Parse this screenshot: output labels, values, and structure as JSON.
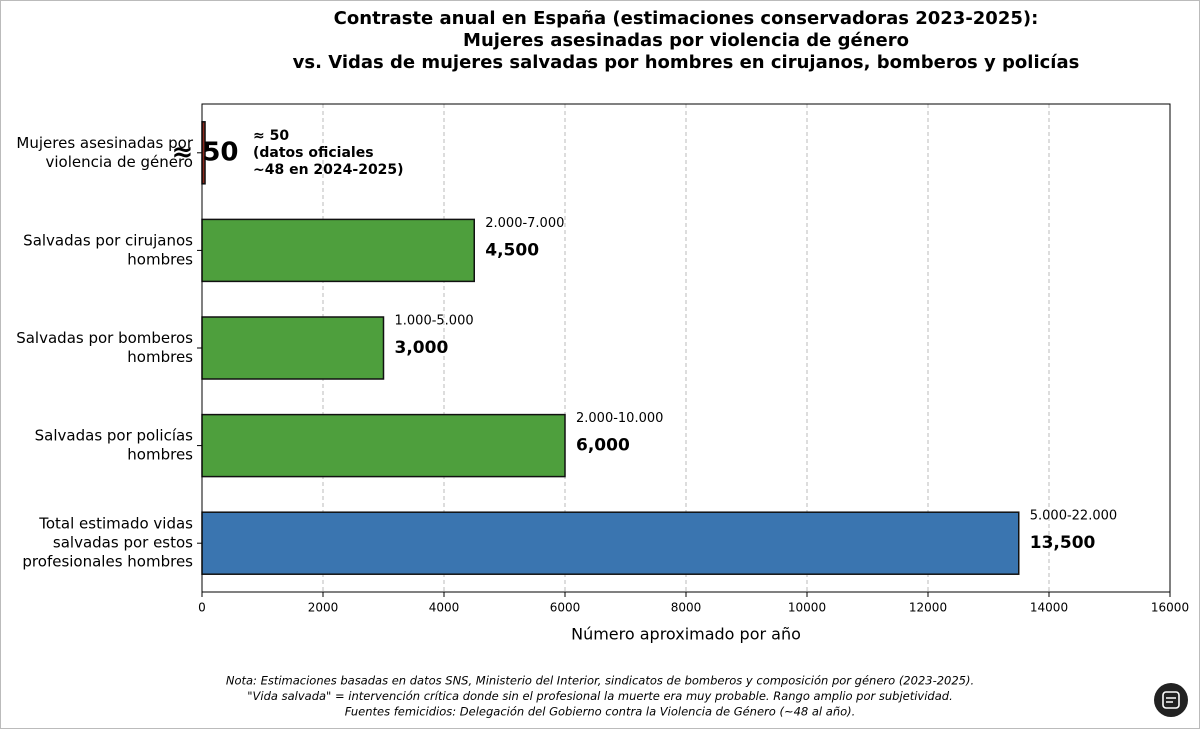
{
  "chart_data": {
    "type": "barh",
    "title": [
      "Contraste anual en España (estimaciones conservadoras 2023-2025):",
      "Mujeres asesinadas por violencia de género",
      "vs. Vidas de mujeres salvadas por hombres en cirujanos, bomberos y policías"
    ],
    "categories": [
      [
        "Mujeres asesinadas por",
        "violencia de género"
      ],
      [
        "Salvadas por cirujanos",
        "hombres"
      ],
      [
        "Salvadas por bomberos",
        "hombres"
      ],
      [
        "Salvadas por policías",
        "hombres"
      ],
      [
        "Total estimado vidas",
        "salvadas por estos",
        "profesionales hombres"
      ]
    ],
    "values": [
      50,
      4500,
      3000,
      6000,
      13500
    ],
    "value_labels": [
      "≈ 50",
      "4,500",
      "3,000",
      "6,000",
      "13,500"
    ],
    "range_labels": [
      null,
      "2.000-7.000",
      "1.000-5.000",
      "2.000-10.000",
      "5.000-22.000"
    ],
    "annotation": [
      "≈ 50",
      "(datos oficiales",
      "~48 en 2024-2025)"
    ],
    "colors": [
      "#8b2a1f",
      "#4e9f3d",
      "#4e9f3d",
      "#4e9f3d",
      "#3a75b0"
    ],
    "xlabel": "Número aproximado por año",
    "xlim": [
      0,
      16000
    ],
    "xticks": [
      0,
      2000,
      4000,
      6000,
      8000,
      10000,
      12000,
      14000,
      16000
    ],
    "grid": true,
    "notes": [
      "Nota: Estimaciones basadas en datos SNS, Ministerio del Interior, sindicatos de bomberos y composición por género (2023-2025).",
      "\"Vida salvada\" = intervención crítica donde sin el profesional la muerte era muy probable. Rango amplio por subjetividad.",
      "Fuentes femicidios: Delegación del Gobierno contra la Violencia de Género (~48 al año)."
    ]
  }
}
